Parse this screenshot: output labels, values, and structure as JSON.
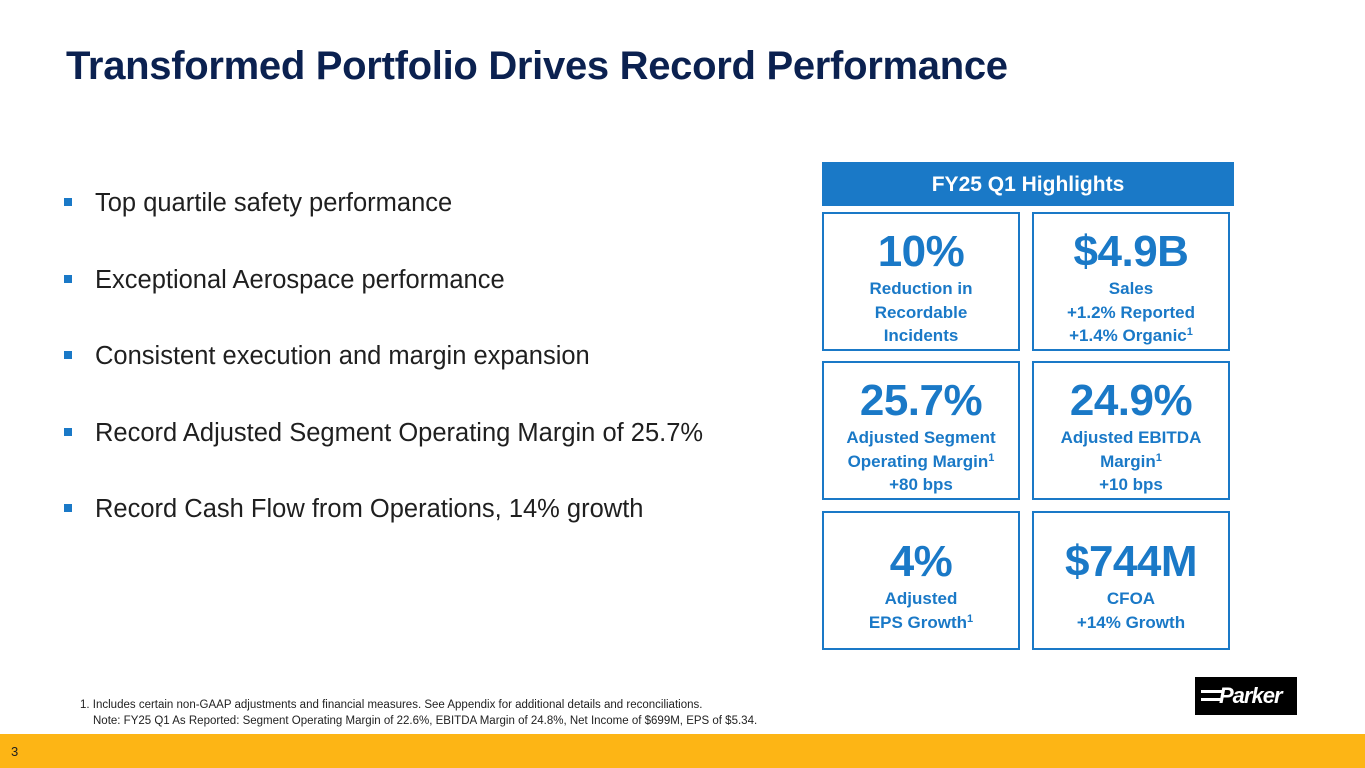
{
  "slide": {
    "title": "Transformed Portfolio Drives Record Performance",
    "page_number": "3"
  },
  "bullets": [
    "Top quartile safety performance",
    "Exceptional Aerospace performance",
    "Consistent execution and margin expansion",
    "Record Adjusted Segment Operating Margin of 25.7%",
    "Record Cash Flow from Operations, 14% growth"
  ],
  "highlights": {
    "header": "FY25 Q1 Highlights",
    "tiles": [
      {
        "value": "10%",
        "line1": "Reduction in",
        "line2": "Recordable",
        "line3": "Incidents"
      },
      {
        "value": "$4.9B",
        "line1": "Sales",
        "line2": "+1.2% Reported",
        "line3": "+1.4% Organic",
        "line3_sup": "1"
      },
      {
        "value": "25.7%",
        "line1": "Adjusted Segment",
        "line2": "Operating Margin",
        "line2_sup": "1",
        "line3": "+80 bps"
      },
      {
        "value": "24.9%",
        "line1": "Adjusted EBITDA",
        "line2": "Margin",
        "line2_sup": "1",
        "line3": "+10 bps"
      },
      {
        "value": "4%",
        "line1": "Adjusted",
        "line2": "EPS Growth",
        "line2_sup": "1"
      },
      {
        "value": "$744M",
        "line1": "CFOA",
        "line2": "+14% Growth"
      }
    ]
  },
  "footnotes": {
    "note1": "1. Includes certain non-GAAP adjustments and financial measures. See Appendix for additional details and reconciliations.",
    "note2": "Note: FY25 Q1 As Reported: Segment Operating Margin of 22.6%, EBITDA Margin of 24.8%, Net Income of $699M, EPS of $5.34."
  },
  "logo": {
    "text": "Parker"
  },
  "colors": {
    "title": "#0b2150",
    "accent_blue": "#1a79c7",
    "bottom_bar": "#fdb515"
  }
}
